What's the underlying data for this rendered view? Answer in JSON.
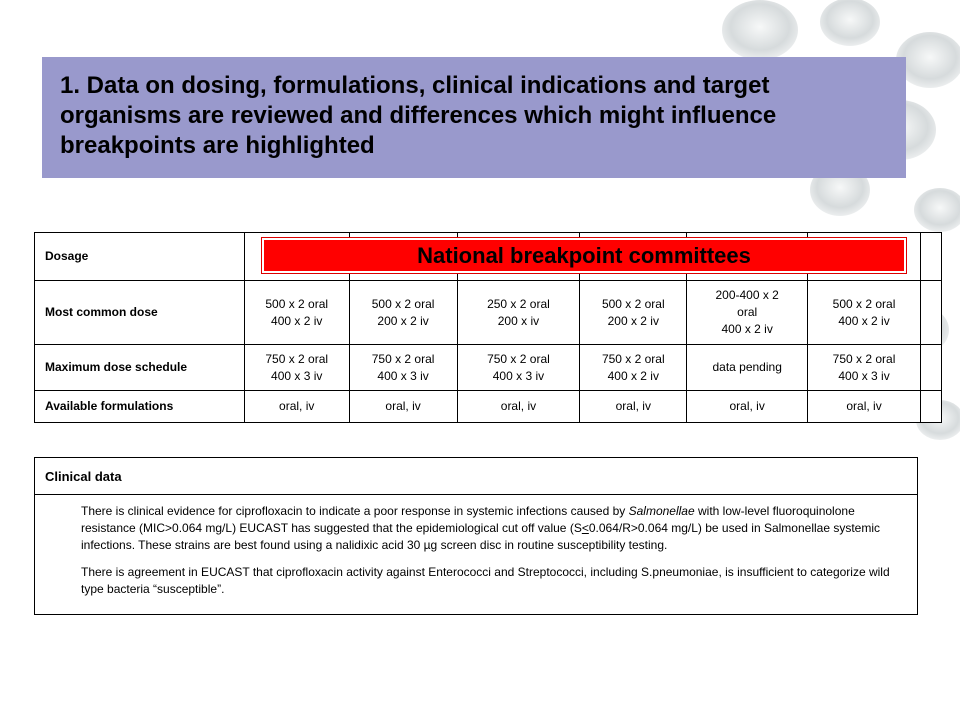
{
  "title": "1. Data on dosing, formulations, clinical indications and target organisms are reviewed and differences which might influence breakpoints are highlighted",
  "banner": "National breakpoint committees",
  "dosage_table": {
    "header_label": "Dosage",
    "rows": [
      {
        "label": "Most common dose",
        "cells": [
          [
            "500 x 2 oral",
            "400 x 2 iv"
          ],
          [
            "500 x 2 oral",
            "200 x 2 iv"
          ],
          [
            "250 x 2 oral",
            "200 x  iv"
          ],
          [
            "500 x 2 oral",
            "200 x 2 iv"
          ],
          [
            "200-400 x 2",
            "oral",
            "400 x 2 iv"
          ],
          [
            "500 x 2 oral",
            "400 x 2 iv"
          ]
        ]
      },
      {
        "label": "Maximum dose schedule",
        "cells": [
          [
            "750 x 2 oral",
            "400 x 3 iv"
          ],
          [
            "750 x 2 oral",
            "400 x 3 iv"
          ],
          [
            "750 x 2 oral",
            "400 x 3 iv"
          ],
          [
            "750 x 2 oral",
            "400 x 2 iv"
          ],
          [
            "data pending"
          ],
          [
            "750 x 2 oral",
            "400 x 3 iv"
          ]
        ]
      },
      {
        "label": "Available formulations",
        "cells": [
          [
            "oral, iv"
          ],
          [
            "oral, iv"
          ],
          [
            "oral, iv"
          ],
          [
            "oral, iv"
          ],
          [
            "oral, iv"
          ],
          [
            "oral, iv"
          ]
        ]
      }
    ]
  },
  "clinical": {
    "header": "Clinical data",
    "p1_a": "There is clinical evidence for ciprofloxacin to indicate a poor response in systemic infections caused by ",
    "p1_italic": "Salmonellae",
    "p1_b": " with low-level fluoroquinolone resistance (MIC>0.064 mg/L) EUCAST has suggested that the epidemiological cut off value (S",
    "p1_underlined": "<",
    "p1_c": "0.064/R>0.064 mg/L) be used in Salmonellae systemic infections. These strains are best found using a nalidixic acid 30 µg screen disc in routine susceptibility testing.",
    "p2": "There is agreement in EUCAST that ciprofloxacin activity against Enterococci and Streptococci, including S.pneumoniae, is insufficient to categorize wild type bacteria “susceptible”."
  }
}
